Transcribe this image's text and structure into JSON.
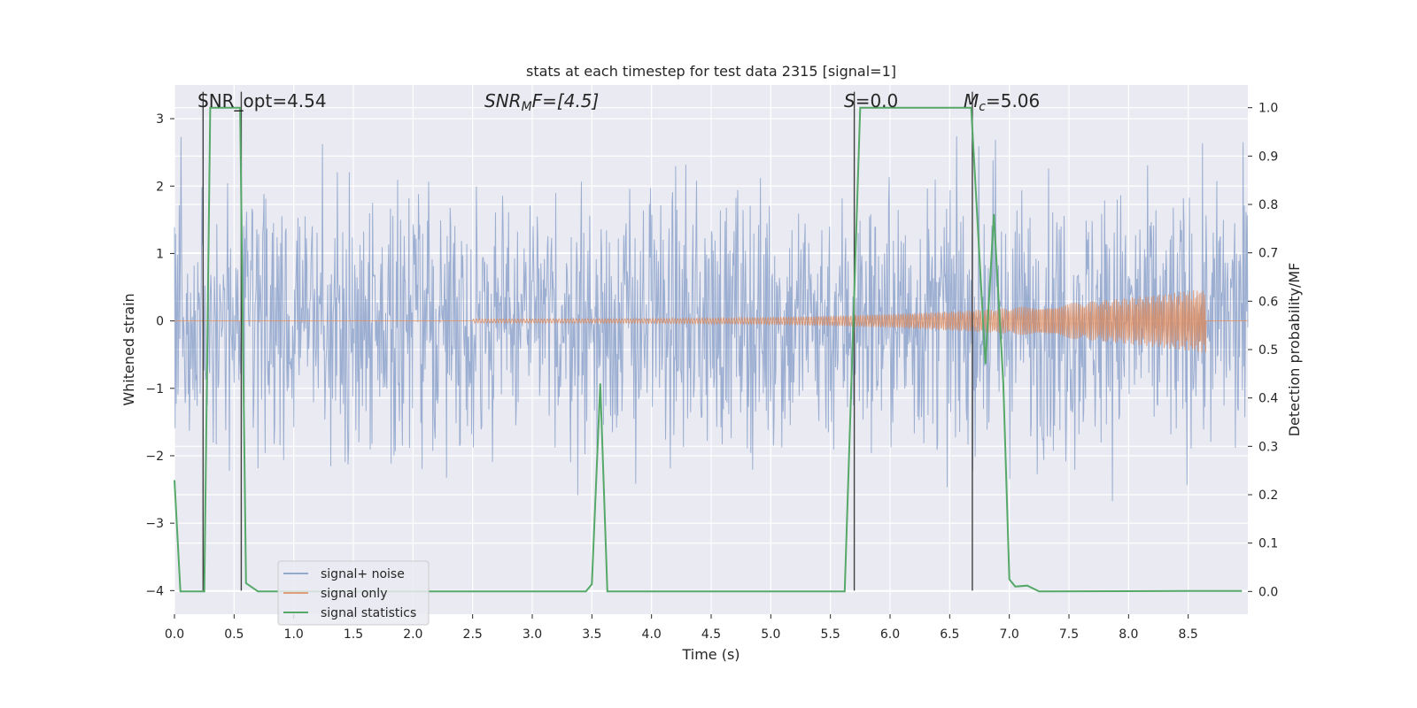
{
  "chart_data": {
    "type": "line",
    "title": "stats at each timestep for test data 2315 [signal=1]",
    "xlabel": "Time (s)",
    "ylabel_left": "Whitened strain",
    "ylabel_right": "Detection probability/MF",
    "xlim": [
      0.0,
      9.0
    ],
    "ylim_left": [
      -4.35,
      3.5
    ],
    "ylim_right": [
      -0.047,
      1.047
    ],
    "xticks": [
      "0.0",
      "0.5",
      "1.0",
      "1.5",
      "2.0",
      "2.5",
      "3.0",
      "3.5",
      "4.0",
      "4.5",
      "5.0",
      "5.5",
      "6.0",
      "6.5",
      "7.0",
      "7.5",
      "8.0",
      "8.5"
    ],
    "yticks_left": [
      "3",
      "2",
      "1",
      "0",
      "−1",
      "−2",
      "−3",
      "−4"
    ],
    "yticks_right": [
      "1.0",
      "0.9",
      "0.8",
      "0.7",
      "0.6",
      "0.5",
      "0.4",
      "0.3",
      "0.2",
      "0.1",
      "0.0"
    ],
    "grid": true,
    "legend_position": "lower-left",
    "annotations": {
      "snr_opt": "SNR_opt=4.54",
      "snr_mf_base": "SNR",
      "snr_mf_sub": "M",
      "snr_mf_rest": "F=[4.5]",
      "s_base": "S",
      "s_rest": "=0.0",
      "mc_base": "M",
      "mc_sub": "c",
      "mc_rest": "=5.06"
    },
    "series": [
      {
        "name": "signal+ noise",
        "color": "#4c72b0",
        "description_of_values": "whitened strain noise, roughly within ±2 with spikes to about ±3.4"
      },
      {
        "name": "signal only",
        "color": "#dd8452",
        "x_start": 2.5,
        "x_end": 8.65,
        "amplitude_peak": 0.45
      },
      {
        "name": "signal statistics",
        "color": "#55a868",
        "axis": "right",
        "x": [
          0.0,
          0.05,
          0.25,
          0.3,
          0.55,
          0.6,
          0.7,
          3.45,
          3.5,
          3.57,
          3.63,
          5.62,
          5.75,
          6.68,
          6.8,
          6.87,
          6.95,
          7.0,
          7.05,
          7.15,
          7.25,
          8.5,
          8.95
        ],
        "values": [
          0.23,
          0.0,
          0.0,
          1.0,
          1.0,
          0.017,
          0.0,
          0.0,
          0.015,
          0.43,
          0.0,
          0.0,
          1.0,
          1.0,
          0.47,
          0.78,
          0.43,
          0.025,
          0.01,
          0.012,
          0.0,
          0.001,
          0.001
        ]
      }
    ],
    "vertical_lines": [
      0.24,
      0.56,
      5.7,
      6.69
    ],
    "vertical_lines_color": "#404040"
  }
}
